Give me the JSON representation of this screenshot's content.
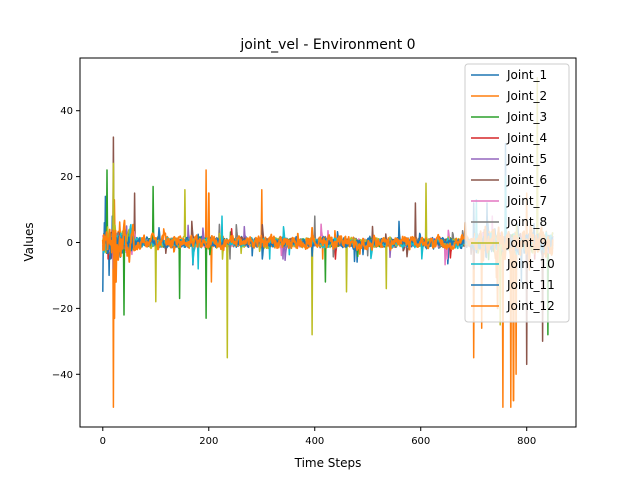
{
  "chart_data": {
    "type": "line",
    "title": "joint_vel - Environment 0",
    "xlabel": "Time Steps",
    "ylabel": "Values",
    "xlim": [
      -43,
      893
    ],
    "ylim": [
      -56,
      56
    ],
    "xticks": [
      0,
      200,
      400,
      600,
      800
    ],
    "yticks": [
      -40,
      -20,
      0,
      20,
      40
    ],
    "tick_labels_x": [
      "0",
      "200",
      "400",
      "600",
      "800"
    ],
    "tick_labels_y": [
      "−40",
      "−20",
      "0",
      "20",
      "40"
    ],
    "grid": false,
    "legend_position": "top-right",
    "n_steps": 850,
    "series": [
      {
        "name": "Joint_1",
        "color": "#1f77b4",
        "noise": 1.2,
        "spikes": [
          [
            0,
            -15
          ],
          [
            5,
            14
          ],
          [
            12,
            -10
          ],
          [
            18,
            8
          ],
          [
            700,
            12
          ],
          [
            760,
            30
          ],
          [
            780,
            -20
          ]
        ]
      },
      {
        "name": "Joint_2",
        "color": "#ff7f0e",
        "noise": 1.2,
        "spikes": [
          [
            20,
            -50
          ],
          [
            22,
            13
          ],
          [
            195,
            22
          ],
          [
            205,
            -12
          ],
          [
            300,
            16
          ],
          [
            415,
            -5
          ],
          [
            700,
            -35
          ],
          [
            715,
            -26
          ],
          [
            755,
            -50
          ],
          [
            770,
            -50
          ],
          [
            780,
            -40
          ],
          [
            800,
            15
          ]
        ]
      },
      {
        "name": "Joint_3",
        "color": "#2ca02c",
        "noise": 0.9,
        "spikes": [
          [
            8,
            22
          ],
          [
            40,
            -22
          ],
          [
            95,
            17
          ],
          [
            145,
            -17
          ],
          [
            195,
            -23
          ],
          [
            420,
            -12
          ],
          [
            840,
            -28
          ],
          [
            860,
            52
          ]
        ]
      },
      {
        "name": "Joint_4",
        "color": "#d62728",
        "noise": 0.6,
        "spikes": [
          [
            10,
            -5
          ],
          [
            30,
            3
          ],
          [
            815,
            -5
          ]
        ]
      },
      {
        "name": "Joint_5",
        "color": "#9467bd",
        "noise": 0.6,
        "spikes": [
          [
            20,
            -8
          ],
          [
            45,
            5
          ],
          [
            340,
            -5
          ]
        ]
      },
      {
        "name": "Joint_6",
        "color": "#8c564b",
        "noise": 0.9,
        "spikes": [
          [
            20,
            32
          ],
          [
            60,
            15
          ],
          [
            590,
            12
          ],
          [
            700,
            -8
          ],
          [
            800,
            -37
          ],
          [
            830,
            -30
          ],
          [
            855,
            20
          ]
        ]
      },
      {
        "name": "Joint_7",
        "color": "#e377c2",
        "noise": 0.9,
        "spikes": [
          [
            220,
            5
          ],
          [
            650,
            -5
          ],
          [
            735,
            8
          ]
        ]
      },
      {
        "name": "Joint_8",
        "color": "#7f7f7f",
        "noise": 0.9,
        "spikes": [
          [
            240,
            -5
          ],
          [
            400,
            8
          ],
          [
            500,
            -4
          ]
        ]
      },
      {
        "name": "Joint_9",
        "color": "#bcbd22",
        "noise": 1.0,
        "spikes": [
          [
            20,
            24
          ],
          [
            100,
            -18
          ],
          [
            155,
            16
          ],
          [
            235,
            -35
          ],
          [
            395,
            -28
          ],
          [
            460,
            -15
          ],
          [
            535,
            -14
          ],
          [
            610,
            18
          ],
          [
            750,
            -25
          ],
          [
            820,
            50
          ]
        ]
      },
      {
        "name": "Joint_10",
        "color": "#17becf",
        "noise": 1.0,
        "spikes": [
          [
            180,
            -8
          ],
          [
            225,
            8
          ],
          [
            315,
            -5
          ],
          [
            705,
            13
          ],
          [
            760,
            20
          ]
        ]
      },
      {
        "name": "Joint_11",
        "color": "#1f77b4",
        "noise": 1.0,
        "spikes": [
          [
            3,
            6
          ],
          [
            15,
            -5
          ],
          [
            725,
            12
          ],
          [
            790,
            -12
          ]
        ]
      },
      {
        "name": "Joint_12",
        "color": "#ff7f0e",
        "noise": 1.6,
        "spikes": [
          [
            22,
            -23
          ],
          [
            25,
            -12
          ],
          [
            200,
            15
          ],
          [
            745,
            -20
          ],
          [
            775,
            -48
          ]
        ]
      }
    ]
  }
}
